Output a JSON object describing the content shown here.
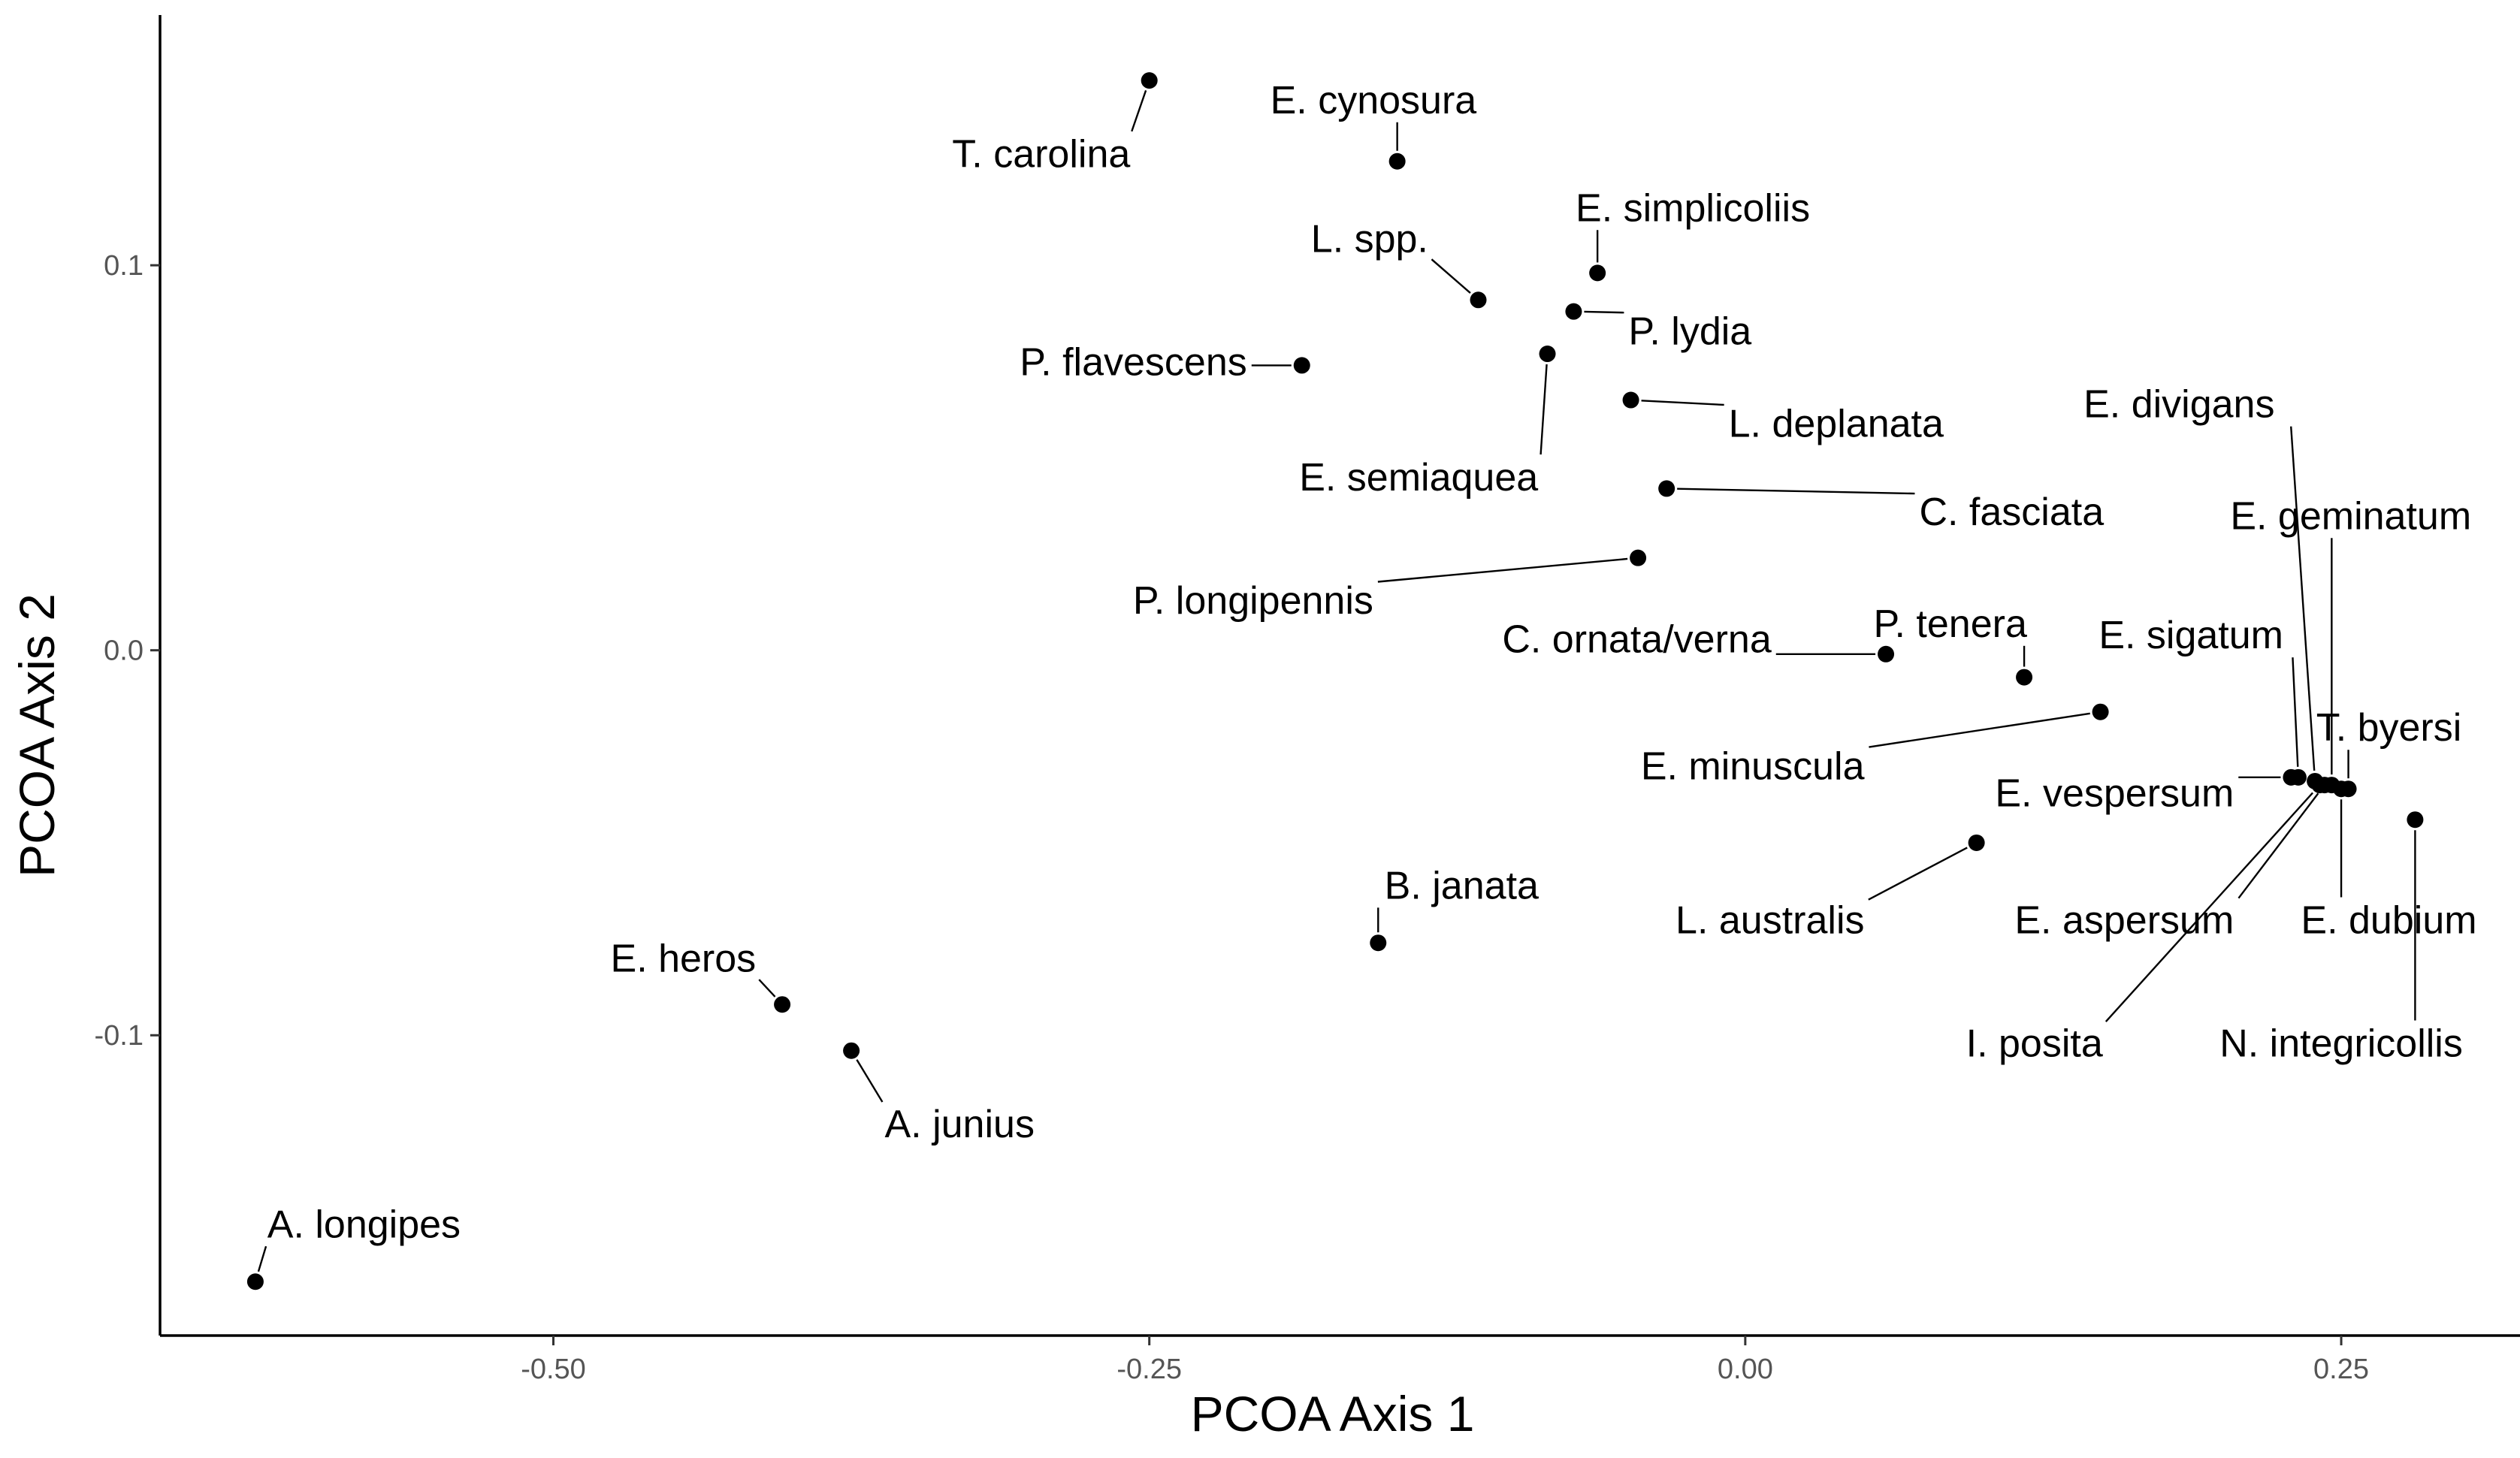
{
  "chart_data": {
    "type": "scatter",
    "xlabel": "PCOA Axis 1",
    "ylabel": "PCOA Axis 2",
    "xlim": [
      -0.665,
      0.325
    ],
    "ylim": [
      -0.178,
      0.165
    ],
    "xticks": [
      {
        "value": -0.5,
        "label": "-0.50"
      },
      {
        "value": -0.25,
        "label": "-0.25"
      },
      {
        "value": 0.0,
        "label": "0.00"
      },
      {
        "value": 0.25,
        "label": "0.25"
      }
    ],
    "yticks": [
      {
        "value": 0.1,
        "label": "0.1"
      },
      {
        "value": 0.0,
        "label": "0.0"
      },
      {
        "value": -0.1,
        "label": "-0.1"
      }
    ],
    "grid": false,
    "legend": "none",
    "point_color": "#000000",
    "points": [
      {
        "label": "T. carolina",
        "x": -0.25,
        "y": 0.148,
        "lx": -0.258,
        "ly": 0.129,
        "anchor": "end"
      },
      {
        "label": "E. cynosura",
        "x": -0.146,
        "y": 0.127,
        "lx": -0.156,
        "ly": 0.143,
        "anchor": "middle"
      },
      {
        "label": "E. simplicoliis",
        "x": -0.062,
        "y": 0.098,
        "lx": -0.022,
        "ly": 0.115,
        "anchor": "middle"
      },
      {
        "label": "L. spp.",
        "x": -0.112,
        "y": 0.091,
        "lx": -0.133,
        "ly": 0.107,
        "anchor": "end"
      },
      {
        "label": "P. lydia",
        "x": -0.072,
        "y": 0.088,
        "lx": -0.049,
        "ly": 0.083,
        "anchor": "start"
      },
      {
        "label": "P. flavescens",
        "x": -0.186,
        "y": 0.074,
        "lx": -0.209,
        "ly": 0.075,
        "anchor": "end"
      },
      {
        "label": "E. semiaquea",
        "x": -0.083,
        "y": 0.077,
        "lx": -0.137,
        "ly": 0.045,
        "anchor": "middle"
      },
      {
        "label": "L. deplanata",
        "x": -0.048,
        "y": 0.065,
        "lx": -0.007,
        "ly": 0.059,
        "anchor": "start"
      },
      {
        "label": "C. fasciata",
        "x": -0.033,
        "y": 0.042,
        "lx": 0.073,
        "ly": 0.036,
        "anchor": "start"
      },
      {
        "label": "P. longipennis",
        "x": -0.045,
        "y": 0.024,
        "lx": -0.156,
        "ly": 0.013,
        "anchor": "end"
      },
      {
        "label": "C. ornata/verna",
        "x": 0.059,
        "y": -0.001,
        "lx": 0.011,
        "ly": 0.003,
        "anchor": "end"
      },
      {
        "label": "P. tenera",
        "x": 0.117,
        "y": -0.007,
        "lx": 0.086,
        "ly": 0.007,
        "anchor": "middle"
      },
      {
        "label": "E. divigans",
        "x": 0.239,
        "y": -0.034,
        "lx": 0.182,
        "ly": 0.064,
        "anchor": "middle"
      },
      {
        "label": "E. geminatum",
        "x": 0.246,
        "y": -0.035,
        "lx": 0.254,
        "ly": 0.035,
        "anchor": "middle"
      },
      {
        "label": "E. sigatum",
        "x": 0.232,
        "y": -0.033,
        "lx": 0.187,
        "ly": 0.004,
        "anchor": "middle"
      },
      {
        "label": "E. minuscula",
        "x": 0.149,
        "y": -0.016,
        "lx": 0.05,
        "ly": -0.03,
        "anchor": "end"
      },
      {
        "label": "T. byersi",
        "x": 0.253,
        "y": -0.036,
        "lx": 0.27,
        "ly": -0.02,
        "anchor": "middle"
      },
      {
        "label": "E. vespersum",
        "x": 0.229,
        "y": -0.033,
        "lx": 0.205,
        "ly": -0.037,
        "anchor": "end"
      },
      {
        "label": "E. aspersum",
        "x": 0.243,
        "y": -0.035,
        "lx": 0.159,
        "ly": -0.07,
        "anchor": "middle"
      },
      {
        "label": "E. dubium",
        "x": 0.25,
        "y": -0.036,
        "lx": 0.27,
        "ly": -0.07,
        "anchor": "middle"
      },
      {
        "label": "L. australis",
        "x": 0.097,
        "y": -0.05,
        "lx": 0.05,
        "ly": -0.07,
        "anchor": "end"
      },
      {
        "label": "I. posita",
        "x": 0.241,
        "y": -0.035,
        "lx": 0.15,
        "ly": -0.102,
        "anchor": "end"
      },
      {
        "label": "N. integricollis",
        "x": 0.281,
        "y": -0.044,
        "lx": 0.25,
        "ly": -0.102,
        "anchor": "middle"
      },
      {
        "label": "B. janata",
        "x": -0.154,
        "y": -0.076,
        "lx": -0.119,
        "ly": -0.061,
        "anchor": "middle"
      },
      {
        "label": "E. heros",
        "x": -0.404,
        "y": -0.092,
        "lx": -0.415,
        "ly": -0.08,
        "anchor": "end"
      },
      {
        "label": "A. junius",
        "x": -0.375,
        "y": -0.104,
        "lx": -0.361,
        "ly": -0.123,
        "anchor": "start"
      },
      {
        "label": "A. longipes",
        "x": -0.625,
        "y": -0.164,
        "lx": -0.62,
        "ly": -0.149,
        "anchor": "start"
      }
    ]
  }
}
